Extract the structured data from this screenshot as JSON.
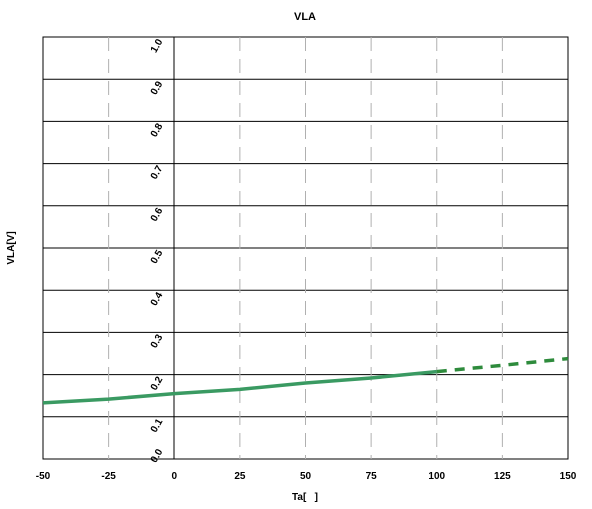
{
  "chart_data": {
    "type": "line",
    "title": "VLA",
    "xlabel": "Ta[   ]",
    "ylabel": "VLA[V]",
    "xlim": [
      -50,
      150
    ],
    "ylim": [
      0,
      1.0
    ],
    "x_ticks": [
      "-50",
      "-25",
      "0",
      "25",
      "50",
      "75",
      "100",
      "125",
      "150"
    ],
    "y_ticks": [
      "0.0",
      "0.1",
      "0.2",
      "0.3",
      "0.4",
      "0.5",
      "0.6",
      "0.7",
      "0.8",
      "0.9",
      "1.0"
    ],
    "grid": true,
    "series": [
      {
        "color": "#3a9a62",
        "style": "solid",
        "x": [
          -50,
          -25,
          0,
          25,
          50,
          75,
          100
        ],
        "y": [
          0.133,
          0.142,
          0.155,
          0.165,
          0.18,
          0.192,
          0.207
        ]
      },
      {
        "color": "#2e8b3c",
        "style": "dashed",
        "x": [
          100,
          125,
          150
        ],
        "y": [
          0.207,
          0.222,
          0.238
        ]
      }
    ]
  }
}
